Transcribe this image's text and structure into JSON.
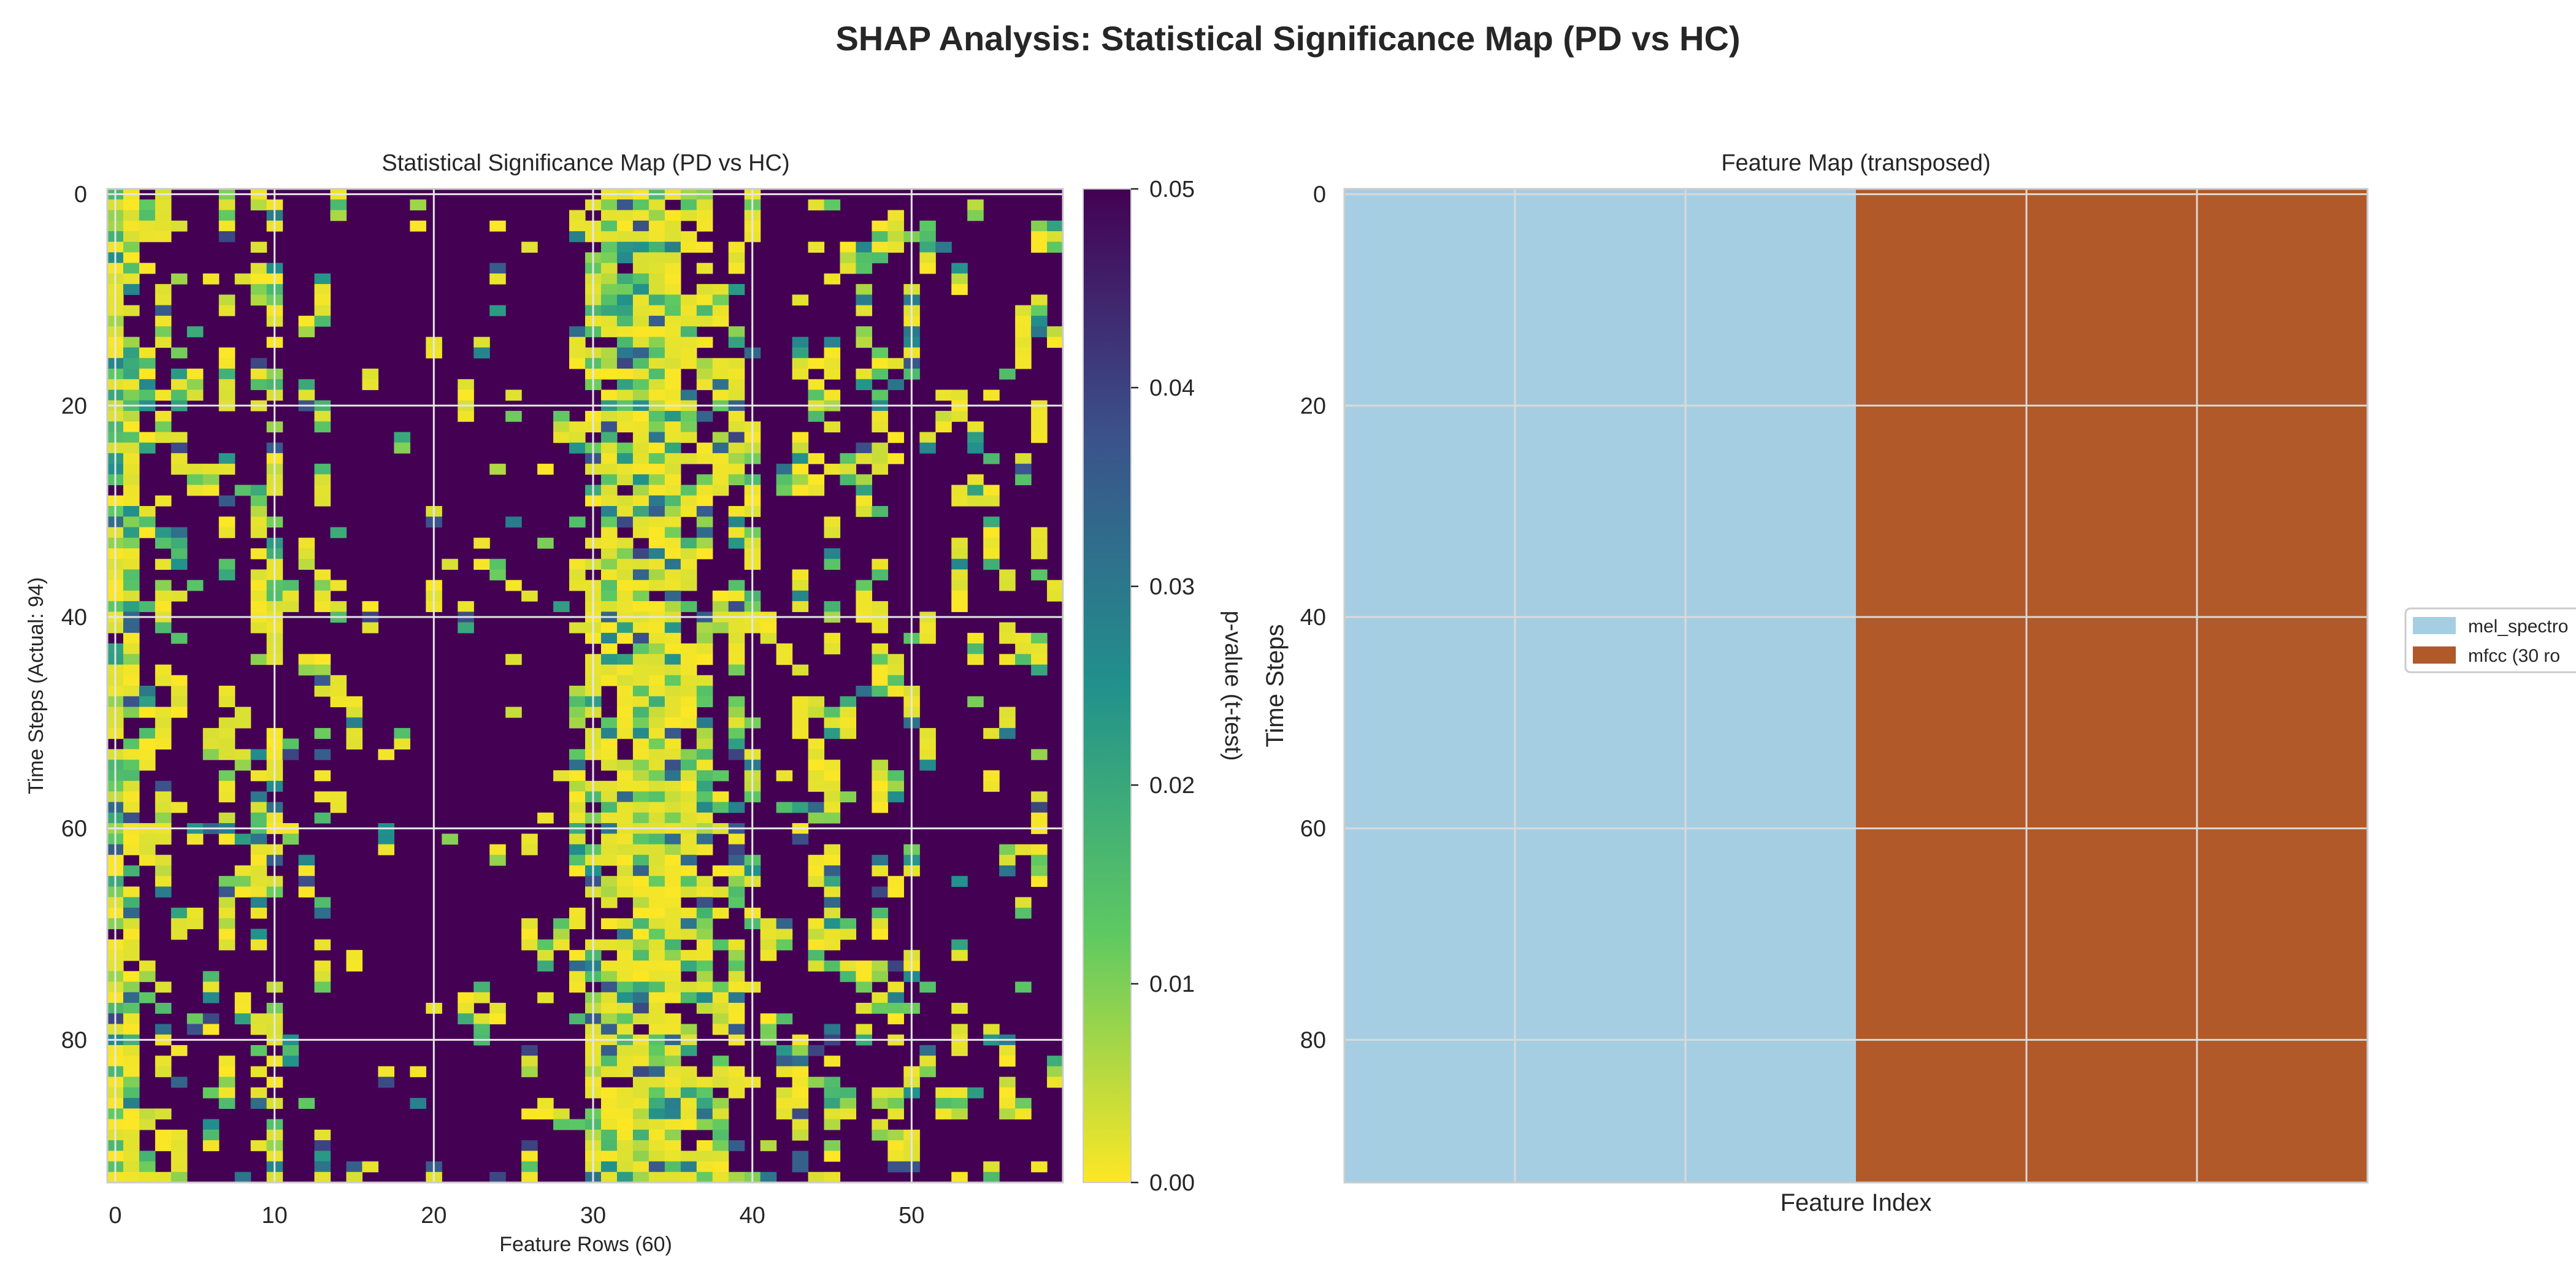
{
  "figure": {
    "title": "SHAP Analysis: Statistical Significance Map (PD vs HC)"
  },
  "chart_data": [
    {
      "type": "heatmap",
      "title": "Statistical Significance Map (PD vs HC)",
      "xlabel": "Feature Rows (60)",
      "ylabel": "Time Steps (Actual: 94)",
      "n_cols": 60,
      "n_rows": 94,
      "x_ticks": [
        0,
        10,
        20,
        30,
        40,
        50
      ],
      "y_ticks": [
        0,
        20,
        40,
        60,
        80
      ],
      "grid": true,
      "colormap": "viridis_r",
      "colorbar": {
        "label": "p-value (t-test)",
        "range": [
          0.0,
          0.05
        ],
        "ticks": [
          "0.00",
          "0.01",
          "0.02",
          "0.03",
          "0.04",
          "0.05"
        ]
      },
      "column_significance": [
        0.96,
        0.9,
        0.35,
        0.5,
        0.2,
        0.16,
        0.12,
        0.3,
        0.2,
        0.55,
        0.6,
        0.12,
        0.16,
        0.3,
        0.1,
        0.05,
        0.06,
        0.08,
        0.05,
        0.08,
        0.1,
        0.06,
        0.08,
        0.1,
        0.07,
        0.08,
        0.08,
        0.1,
        0.14,
        0.32,
        0.82,
        0.86,
        0.88,
        0.96,
        0.98,
        0.96,
        0.8,
        0.7,
        0.6,
        0.7,
        0.3,
        0.12,
        0.16,
        0.22,
        0.28,
        0.5,
        0.24,
        0.22,
        0.36,
        0.22,
        0.16,
        0.16,
        0.14,
        0.2,
        0.12,
        0.16,
        0.18,
        0.22,
        0.28,
        0.14
      ]
    },
    {
      "type": "heatmap",
      "title": "Feature Map (transposed)",
      "xlabel": "Feature Index",
      "ylabel": "Time Steps",
      "n_rows": 94,
      "y_ticks": [
        0,
        20,
        40,
        60,
        80
      ],
      "grid": true,
      "legend_position": "right",
      "segments": [
        {
          "name": "mel_spectro",
          "columns": 30,
          "color": "#a6cee3"
        },
        {
          "name": "mfcc (30 ro",
          "columns": 30,
          "color": "#b15928"
        }
      ]
    }
  ]
}
